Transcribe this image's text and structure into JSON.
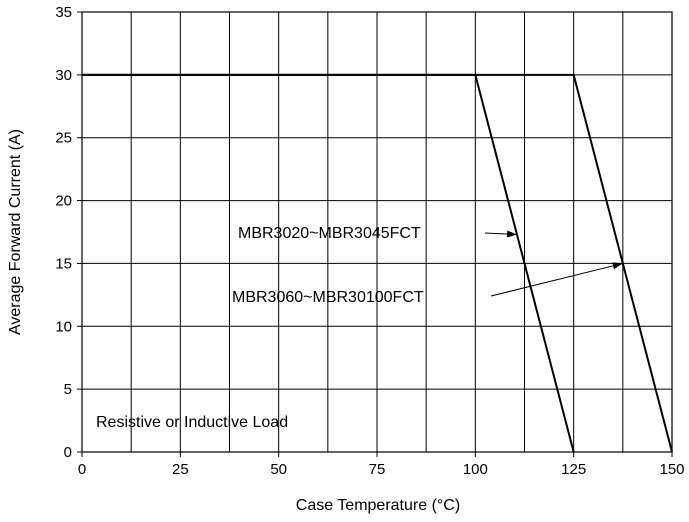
{
  "chart_data": {
    "type": "line",
    "xlabel": "Case Temperature (°C)",
    "ylabel": "Average Forward Current (A)",
    "xlim": [
      0,
      150
    ],
    "ylim": [
      0,
      35
    ],
    "grid": true,
    "x_major_ticks": [
      0,
      25,
      50,
      75,
      100,
      125,
      150
    ],
    "x_grid_step": 12.5,
    "y_major_ticks": [
      0,
      5,
      10,
      15,
      20,
      25,
      30,
      35
    ],
    "series": [
      {
        "name": "MBR3020~MBR3045FCT",
        "x": [
          0,
          100,
          125
        ],
        "y": [
          30,
          30,
          0
        ]
      },
      {
        "name": "MBR3060~MBR30100FCT",
        "x": [
          0,
          125,
          150
        ],
        "y": [
          30,
          30,
          0
        ]
      }
    ],
    "annotations": [
      {
        "text": "MBR3020~MBR3045FCT",
        "points_to": [
          110.6,
          17.3
        ]
      },
      {
        "text": "MBR3060~MBR30100FCT",
        "points_to": [
          137.5,
          15
        ]
      },
      {
        "text": "Resistive or Inductive Load"
      }
    ]
  }
}
